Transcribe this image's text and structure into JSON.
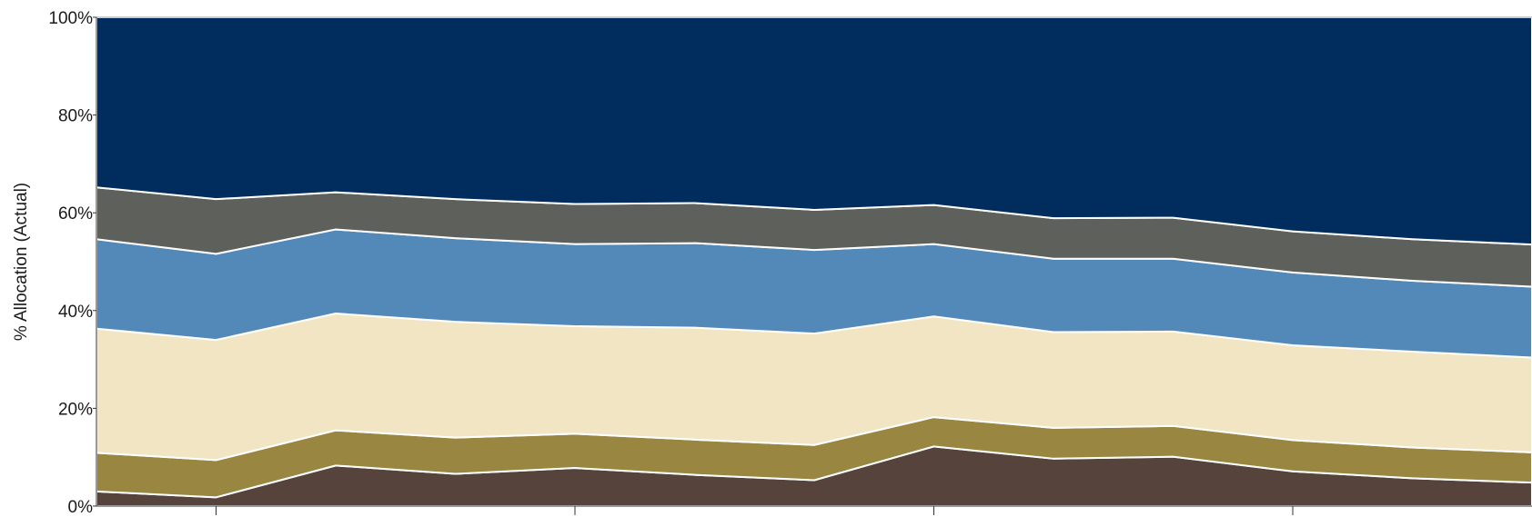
{
  "chart_data": {
    "type": "area",
    "stacked": true,
    "normalized": true,
    "title": "",
    "xlabel": "",
    "ylabel": "% Allocation (Actual)",
    "ylim": [
      0,
      100
    ],
    "yticks": [
      "0%",
      "20%",
      "40%",
      "60%",
      "80%",
      "100%"
    ],
    "grid": false,
    "legend": "none",
    "x": [
      0,
      1,
      2,
      3,
      4,
      5,
      6,
      7,
      8,
      9,
      10,
      11,
      12
    ],
    "xticks_at": [
      1,
      4,
      7,
      10
    ],
    "series": [
      {
        "color": "#56443c",
        "values": [
          3.0,
          1.8,
          8.3,
          6.6,
          7.8,
          6.4,
          5.3,
          12.2,
          9.7,
          10.1,
          7.1,
          5.7,
          4.8
        ]
      },
      {
        "color": "#998641",
        "values": [
          7.9,
          7.6,
          7.2,
          7.4,
          7.0,
          7.2,
          7.2,
          6.0,
          6.3,
          6.3,
          6.4,
          6.3,
          6.2
        ]
      },
      {
        "color": "#f2e5c4",
        "values": [
          25.4,
          24.6,
          23.9,
          23.7,
          22.0,
          22.9,
          22.8,
          20.6,
          19.6,
          19.3,
          19.4,
          19.6,
          19.4
        ]
      },
      {
        "color": "#5389b8",
        "values": [
          18.3,
          17.6,
          17.2,
          17.1,
          16.8,
          17.3,
          17.1,
          14.8,
          15.0,
          14.9,
          14.9,
          14.5,
          14.5
        ]
      },
      {
        "color": "#5e605c",
        "values": [
          10.6,
          11.2,
          7.6,
          8.0,
          8.2,
          8.2,
          8.2,
          8.0,
          8.3,
          8.4,
          8.4,
          8.5,
          8.6
        ]
      },
      {
        "color": "#002d5e",
        "values": [
          34.8,
          37.2,
          35.8,
          37.2,
          38.2,
          38.0,
          39.4,
          38.4,
          41.1,
          41.0,
          43.8,
          45.4,
          46.5
        ]
      }
    ]
  }
}
